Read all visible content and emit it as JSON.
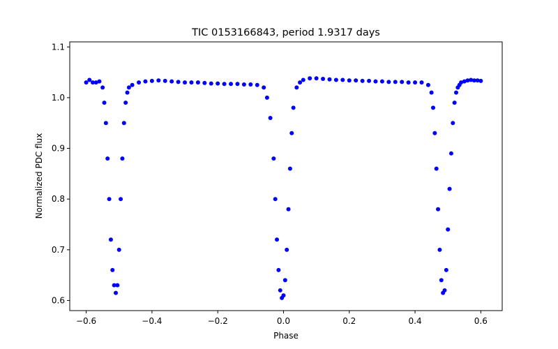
{
  "chart_data": {
    "type": "scatter",
    "title": "TIC 0153166843, period 1.9317 days",
    "xlabel": "Phase",
    "ylabel": "Normalized PDC flux",
    "xlim": [
      -0.65,
      0.665
    ],
    "ylim": [
      0.58,
      1.11
    ],
    "xticks": [
      -0.6,
      -0.4,
      -0.2,
      0.0,
      0.2,
      0.4,
      0.6
    ],
    "xtick_labels": [
      "−0.6",
      "−0.4",
      "−0.2",
      "0.0",
      "0.2",
      "0.4",
      "0.6"
    ],
    "yticks": [
      0.6,
      0.7,
      0.8,
      0.9,
      1.0,
      1.1
    ],
    "ytick_labels": [
      "0.6",
      "0.7",
      "0.8",
      "0.9",
      "1.0",
      "1.1"
    ],
    "grid": false,
    "marker_color": "#0000ff",
    "series": [
      {
        "values_description": "phase-folded light curve points",
        "x": [
          -0.6,
          -0.59,
          -0.58,
          -0.57,
          -0.56,
          -0.55,
          -0.545,
          -0.54,
          -0.535,
          -0.53,
          -0.525,
          -0.52,
          -0.515,
          -0.51,
          -0.505,
          -0.5,
          -0.495,
          -0.49,
          -0.485,
          -0.48,
          -0.475,
          -0.47,
          -0.46,
          -0.44,
          -0.42,
          -0.4,
          -0.38,
          -0.36,
          -0.34,
          -0.32,
          -0.3,
          -0.28,
          -0.26,
          -0.24,
          -0.22,
          -0.2,
          -0.18,
          -0.16,
          -0.14,
          -0.12,
          -0.1,
          -0.08,
          -0.06,
          -0.05,
          -0.04,
          -0.03,
          -0.025,
          -0.02,
          -0.015,
          -0.01,
          -0.005,
          0.0,
          0.005,
          0.01,
          0.015,
          0.02,
          0.025,
          0.03,
          0.04,
          0.05,
          0.06,
          0.08,
          0.1,
          0.12,
          0.14,
          0.16,
          0.18,
          0.2,
          0.22,
          0.24,
          0.26,
          0.28,
          0.3,
          0.32,
          0.34,
          0.36,
          0.38,
          0.4,
          0.42,
          0.44,
          0.45,
          0.455,
          0.46,
          0.465,
          0.47,
          0.475,
          0.48,
          0.485,
          0.49,
          0.495,
          0.5,
          0.505,
          0.51,
          0.515,
          0.52,
          0.525,
          0.53,
          0.535,
          0.54,
          0.55,
          0.56,
          0.57,
          0.58,
          0.59,
          0.6
        ],
        "y": [
          1.03,
          1.035,
          1.03,
          1.03,
          1.032,
          1.02,
          0.99,
          0.95,
          0.88,
          0.8,
          0.72,
          0.66,
          0.63,
          0.615,
          0.63,
          0.7,
          0.8,
          0.88,
          0.95,
          0.99,
          1.01,
          1.02,
          1.025,
          1.03,
          1.032,
          1.033,
          1.034,
          1.033,
          1.032,
          1.031,
          1.03,
          1.03,
          1.03,
          1.029,
          1.028,
          1.028,
          1.027,
          1.027,
          1.027,
          1.026,
          1.026,
          1.025,
          1.02,
          1.0,
          0.96,
          0.88,
          0.8,
          0.72,
          0.66,
          0.62,
          0.605,
          0.61,
          0.64,
          0.7,
          0.78,
          0.86,
          0.93,
          0.98,
          1.02,
          1.03,
          1.035,
          1.038,
          1.038,
          1.037,
          1.036,
          1.035,
          1.035,
          1.034,
          1.034,
          1.033,
          1.033,
          1.032,
          1.032,
          1.031,
          1.031,
          1.031,
          1.03,
          1.03,
          1.03,
          1.025,
          1.01,
          0.98,
          0.93,
          0.86,
          0.78,
          0.7,
          0.64,
          0.615,
          0.62,
          0.66,
          0.74,
          0.82,
          0.89,
          0.95,
          0.99,
          1.01,
          1.02,
          1.025,
          1.03,
          1.032,
          1.034,
          1.035,
          1.034,
          1.034,
          1.033
        ]
      }
    ]
  }
}
